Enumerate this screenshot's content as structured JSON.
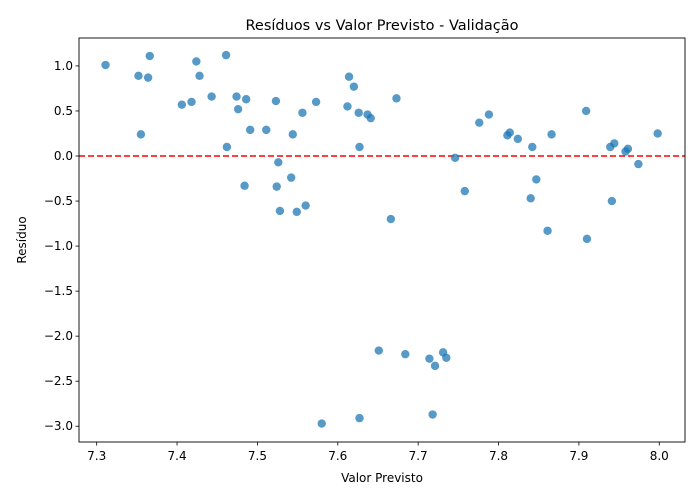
{
  "chart_data": {
    "type": "scatter",
    "title": "Resíduos vs Valor Previsto - Validação",
    "xlabel": "Valor Previsto",
    "ylabel": "Resíduo",
    "xlim": [
      7.278,
      8.032
    ],
    "ylim": [
      -3.175,
      1.31
    ],
    "xticks": [
      7.3,
      7.4,
      7.5,
      7.6,
      7.7,
      7.8,
      7.9,
      8.0
    ],
    "xtick_labels": [
      "7.3",
      "7.4",
      "7.5",
      "7.6",
      "7.7",
      "7.8",
      "7.9",
      "8.0"
    ],
    "yticks": [
      1.0,
      0.5,
      0.0,
      -0.5,
      -1.0,
      -1.5,
      -2.0,
      -2.5,
      -3.0
    ],
    "ytick_labels": [
      "1.0",
      "0.5",
      "0.0",
      "−0.5",
      "−1.0",
      "−1.5",
      "−2.0",
      "−2.5",
      "−3.0"
    ],
    "reference_line": {
      "y": 0.0,
      "style": "dashed",
      "color": "#ff0000"
    },
    "point_color": "#1f77b4",
    "points": [
      [
        7.311,
        1.01
      ],
      [
        7.352,
        0.89
      ],
      [
        7.355,
        0.24
      ],
      [
        7.364,
        0.87
      ],
      [
        7.366,
        1.11
      ],
      [
        7.406,
        0.57
      ],
      [
        7.418,
        0.6
      ],
      [
        7.424,
        1.05
      ],
      [
        7.428,
        0.89
      ],
      [
        7.443,
        0.66
      ],
      [
        7.461,
        1.12
      ],
      [
        7.462,
        0.1
      ],
      [
        7.474,
        0.66
      ],
      [
        7.476,
        0.52
      ],
      [
        7.484,
        -0.33
      ],
      [
        7.486,
        0.63
      ],
      [
        7.491,
        0.29
      ],
      [
        7.511,
        0.29
      ],
      [
        7.523,
        0.61
      ],
      [
        7.524,
        -0.34
      ],
      [
        7.526,
        -0.07
      ],
      [
        7.528,
        -0.61
      ],
      [
        7.542,
        -0.24
      ],
      [
        7.544,
        0.24
      ],
      [
        7.549,
        -0.62
      ],
      [
        7.556,
        0.48
      ],
      [
        7.56,
        -0.55
      ],
      [
        7.573,
        0.6
      ],
      [
        7.58,
        -2.97
      ],
      [
        7.612,
        0.55
      ],
      [
        7.614,
        0.88
      ],
      [
        7.62,
        0.77
      ],
      [
        7.626,
        0.48
      ],
      [
        7.627,
        0.1
      ],
      [
        7.627,
        -2.91
      ],
      [
        7.637,
        0.46
      ],
      [
        7.641,
        0.42
      ],
      [
        7.651,
        -2.16
      ],
      [
        7.666,
        -0.7
      ],
      [
        7.673,
        0.64
      ],
      [
        7.684,
        -2.2
      ],
      [
        7.714,
        -2.25
      ],
      [
        7.718,
        -2.87
      ],
      [
        7.721,
        -2.33
      ],
      [
        7.731,
        -2.18
      ],
      [
        7.735,
        -2.24
      ],
      [
        7.746,
        -0.02
      ],
      [
        7.758,
        -0.39
      ],
      [
        7.776,
        0.37
      ],
      [
        7.788,
        0.46
      ],
      [
        7.811,
        0.23
      ],
      [
        7.814,
        0.26
      ],
      [
        7.824,
        0.19
      ],
      [
        7.84,
        -0.47
      ],
      [
        7.842,
        0.1
      ],
      [
        7.847,
        -0.26
      ],
      [
        7.861,
        -0.83
      ],
      [
        7.866,
        0.24
      ],
      [
        7.909,
        0.5
      ],
      [
        7.91,
        -0.92
      ],
      [
        7.939,
        0.1
      ],
      [
        7.941,
        -0.5
      ],
      [
        7.944,
        0.14
      ],
      [
        7.958,
        0.05
      ],
      [
        7.961,
        0.08
      ],
      [
        7.974,
        -0.09
      ],
      [
        7.998,
        0.25
      ]
    ]
  }
}
